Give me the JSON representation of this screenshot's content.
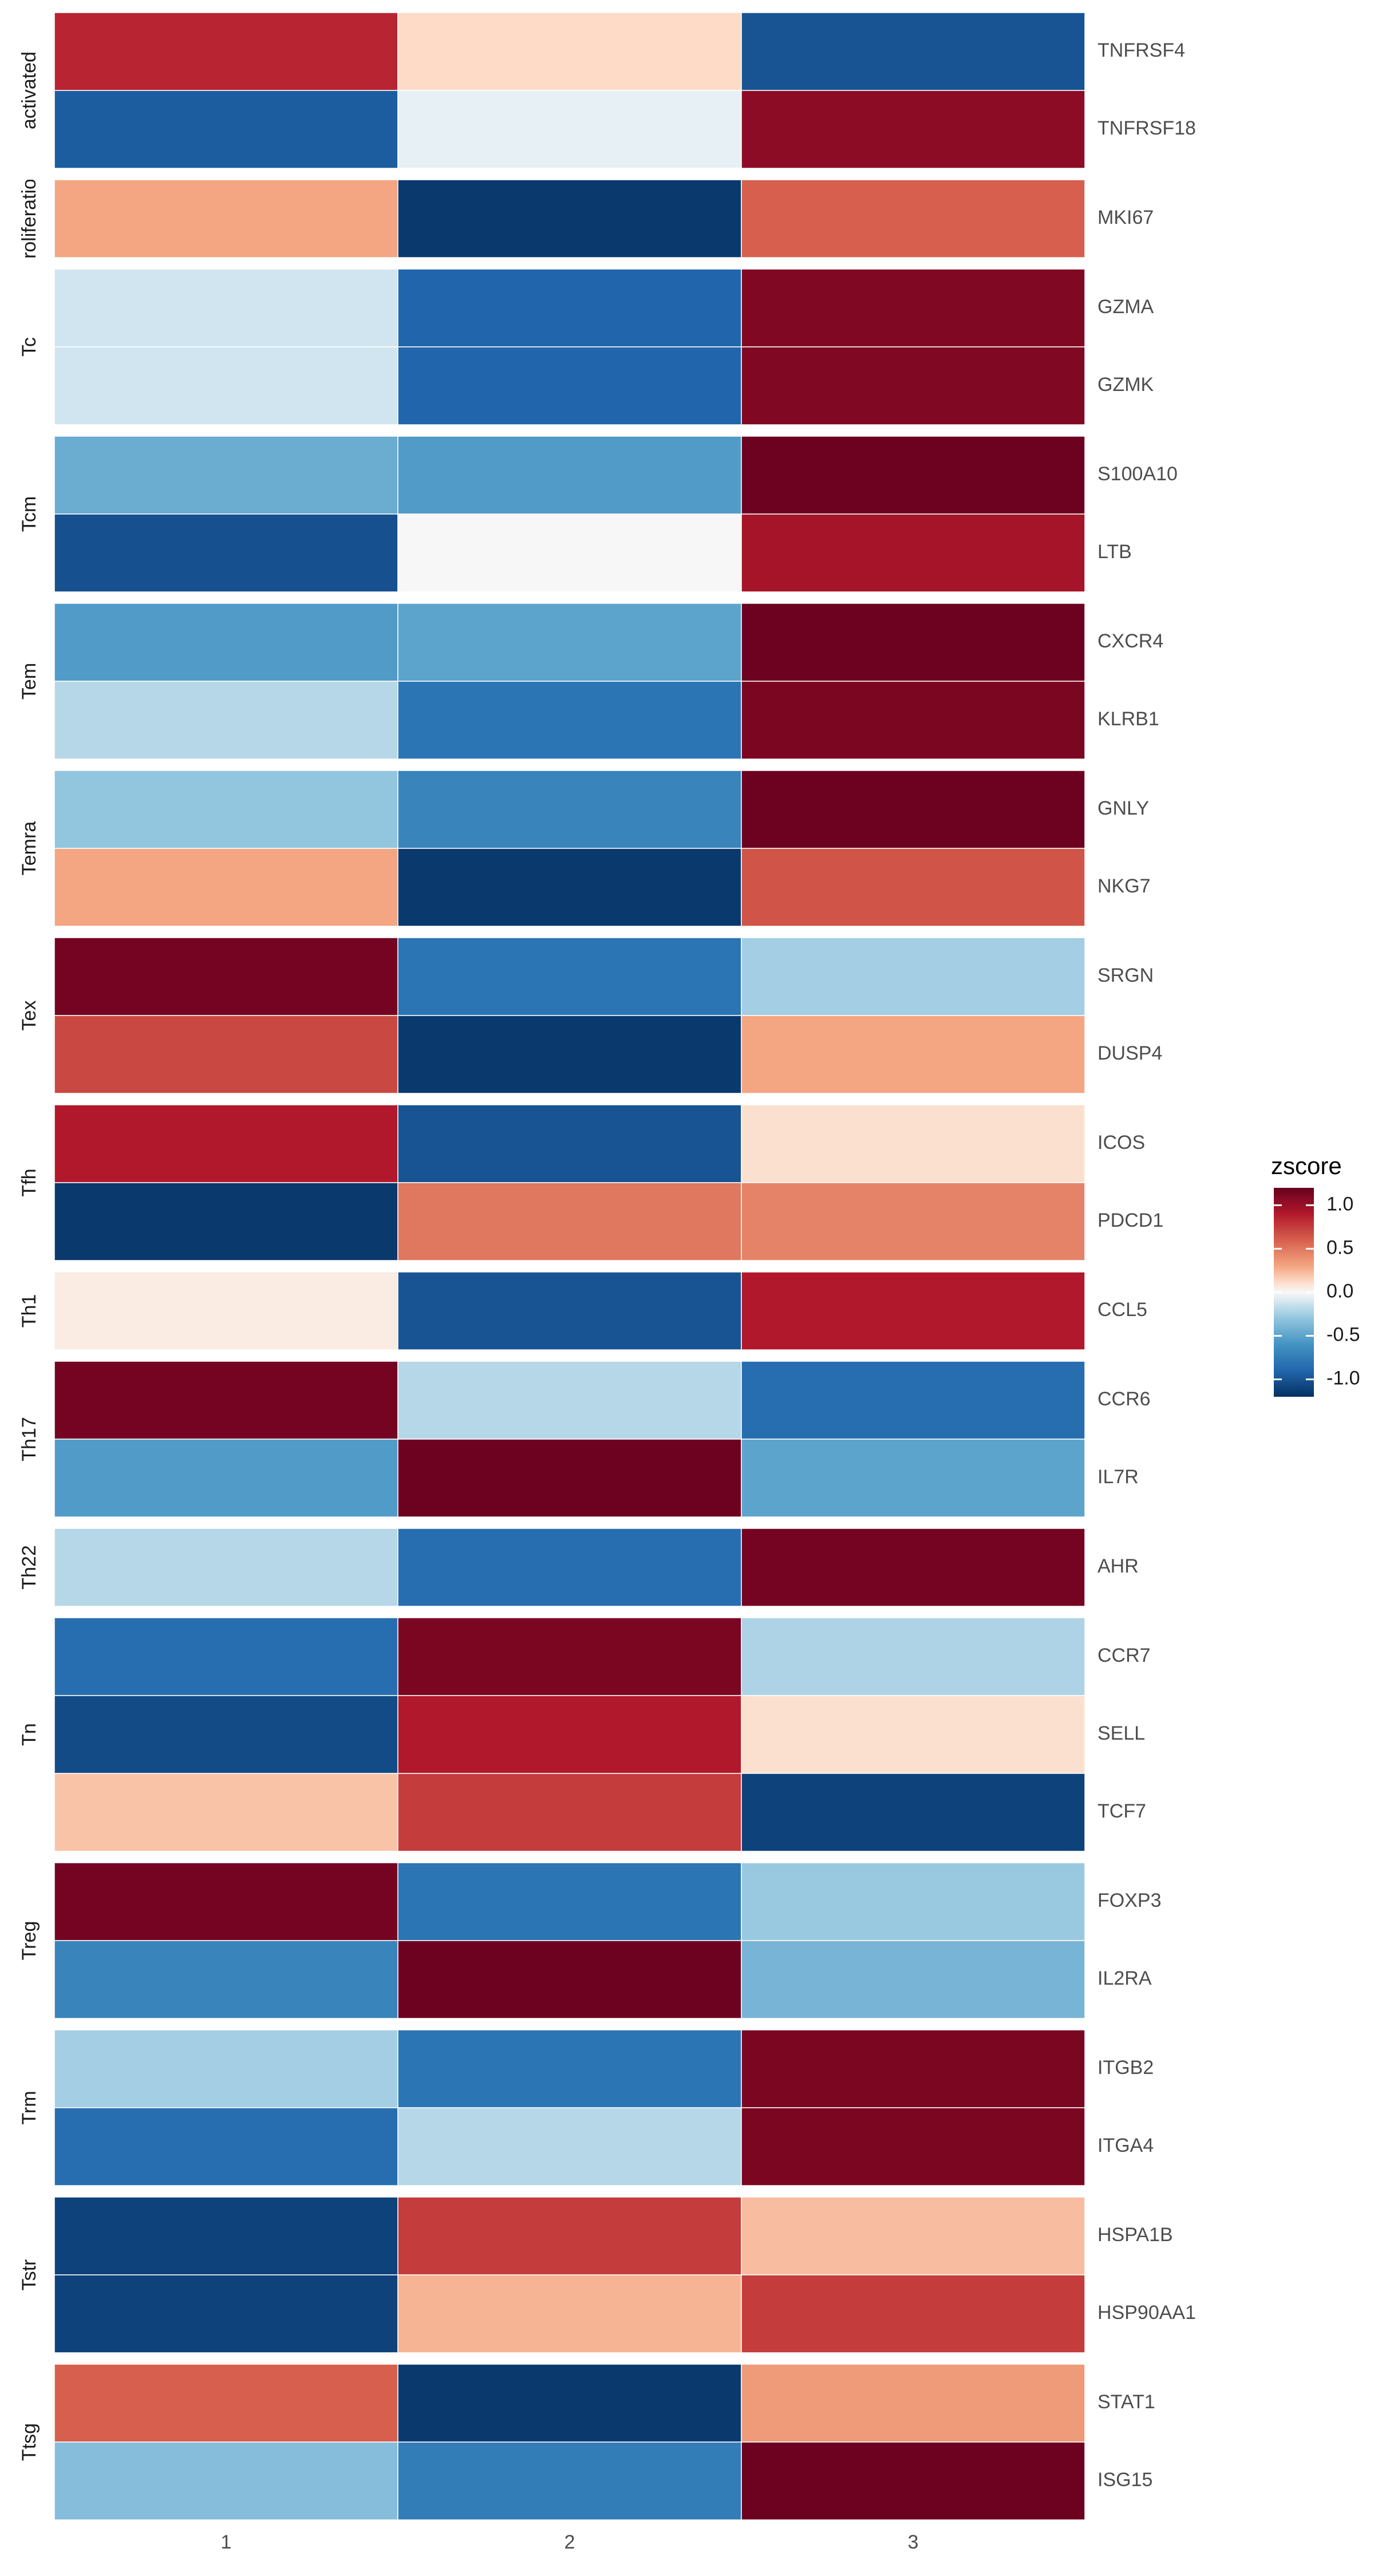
{
  "chart_data": {
    "type": "heatmap",
    "title": "",
    "xlabel": "",
    "ylabel": "",
    "x_categories": [
      "1",
      "2",
      "3"
    ],
    "color_scale": {
      "palette": "RdBu",
      "low_color": "#053061",
      "mid_color": "#f7f7f7",
      "high_color": "#67001f",
      "limits": [
        -1.2,
        1.2
      ]
    },
    "legend": {
      "title": "zscore",
      "position": "right",
      "ticks": [
        {
          "value": 1.0,
          "label": "1.0"
        },
        {
          "value": 0.5,
          "label": "0.5"
        },
        {
          "value": 0.0,
          "label": "0.0"
        },
        {
          "value": -0.5,
          "label": "-0.5"
        },
        {
          "value": -1.0,
          "label": "-1.0"
        }
      ]
    },
    "grid": false,
    "groups": [
      {
        "name": "activated",
        "genes": [
          {
            "gene": "TNFRSF4",
            "values": [
              0.85,
              0.12,
              -1.0
            ]
          },
          {
            "gene": "TNFRSF18",
            "values": [
              -0.95,
              -0.05,
              1.05
            ]
          }
        ]
      },
      {
        "name": "proliferation",
        "genes": [
          {
            "gene": "MKI67",
            "values": [
              0.3,
              -1.15,
              0.6
            ]
          }
        ]
      },
      {
        "name": "Tc",
        "genes": [
          {
            "gene": "GZMA",
            "values": [
              -0.12,
              -0.9,
              1.1
            ]
          },
          {
            "gene": "GZMK",
            "values": [
              -0.12,
              -0.9,
              1.1
            ]
          }
        ]
      },
      {
        "name": "Tcm",
        "genes": [
          {
            "gene": "S100A10",
            "values": [
              -0.45,
              -0.55,
              1.18
            ]
          },
          {
            "gene": "LTB",
            "values": [
              -1.02,
              0.0,
              0.95
            ]
          }
        ]
      },
      {
        "name": "Tem",
        "genes": [
          {
            "gene": "CXCR4",
            "values": [
              -0.55,
              -0.5,
              1.18
            ]
          },
          {
            "gene": "KLRB1",
            "values": [
              -0.2,
              -0.8,
              1.12
            ]
          }
        ]
      },
      {
        "name": "Temra",
        "genes": [
          {
            "gene": "GNLY",
            "values": [
              -0.3,
              -0.7,
              1.18
            ]
          },
          {
            "gene": "NKG7",
            "values": [
              0.3,
              -1.15,
              0.65
            ]
          }
        ]
      },
      {
        "name": "Tex",
        "genes": [
          {
            "gene": "SRGN",
            "values": [
              1.15,
              -0.8,
              -0.25
            ]
          },
          {
            "gene": "DUSP4",
            "values": [
              0.7,
              -1.15,
              0.3
            ]
          }
        ]
      },
      {
        "name": "Tfh",
        "genes": [
          {
            "gene": "ICOS",
            "values": [
              0.9,
              -1.0,
              0.1
            ]
          },
          {
            "gene": "PDCD1",
            "values": [
              -1.15,
              0.5,
              0.45
            ]
          }
        ]
      },
      {
        "name": "Th1",
        "genes": [
          {
            "gene": "CCL5",
            "values": [
              0.05,
              -1.0,
              0.9
            ]
          }
        ]
      },
      {
        "name": "Th17",
        "genes": [
          {
            "gene": "CCR6",
            "values": [
              1.15,
              -0.2,
              -0.85
            ]
          },
          {
            "gene": "IL7R",
            "values": [
              -0.55,
              1.18,
              -0.5
            ]
          }
        ]
      },
      {
        "name": "Th22",
        "genes": [
          {
            "gene": "AHR",
            "values": [
              -0.2,
              -0.85,
              1.15
            ]
          }
        ]
      },
      {
        "name": "Tn",
        "genes": [
          {
            "gene": "CCR7",
            "values": [
              -0.85,
              1.12,
              -0.22
            ]
          },
          {
            "gene": "SELL",
            "values": [
              -1.05,
              0.9,
              0.1
            ]
          },
          {
            "gene": "TCF7",
            "values": [
              0.2,
              0.75,
              -1.1
            ]
          }
        ]
      },
      {
        "name": "Treg",
        "genes": [
          {
            "gene": "FOXP3",
            "values": [
              1.15,
              -0.8,
              -0.28
            ]
          },
          {
            "gene": "IL2RA",
            "values": [
              -0.7,
              1.18,
              -0.4
            ]
          }
        ]
      },
      {
        "name": "Trm",
        "genes": [
          {
            "gene": "ITGB2",
            "values": [
              -0.25,
              -0.8,
              1.12
            ]
          },
          {
            "gene": "ITGA4",
            "values": [
              -0.85,
              -0.2,
              1.12
            ]
          }
        ]
      },
      {
        "name": "Tstr",
        "genes": [
          {
            "gene": "HSPA1B",
            "values": [
              -1.1,
              0.75,
              0.22
            ]
          },
          {
            "gene": "HSP90AA1",
            "values": [
              -1.1,
              0.25,
              0.75
            ]
          }
        ]
      },
      {
        "name": "Ttsg",
        "genes": [
          {
            "gene": "STAT1",
            "values": [
              0.6,
              -1.15,
              0.35
            ]
          },
          {
            "gene": "ISG15",
            "values": [
              -0.35,
              -0.75,
              1.18
            ]
          }
        ]
      }
    ]
  }
}
